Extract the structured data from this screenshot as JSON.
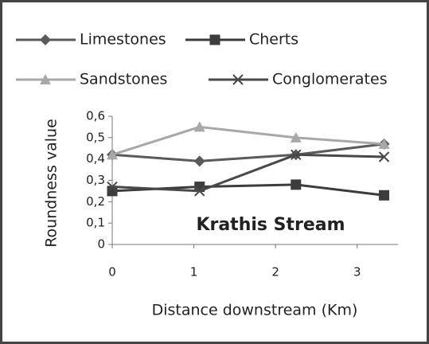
{
  "chart_data": {
    "type": "line",
    "annotation": "Krathis Stream",
    "x_label": "Distance downstream (Km)",
    "y_label": "Roundness value",
    "x": [
      0,
      1.07,
      2.25,
      3.33
    ],
    "series": [
      {
        "name": "Limestones",
        "color": "#5a5a5a",
        "marker": "diamond",
        "values": [
          0.42,
          0.39,
          0.42,
          0.47
        ]
      },
      {
        "name": "Cherts",
        "color": "#3c3c3c",
        "marker": "square",
        "values": [
          0.25,
          0.27,
          0.28,
          0.23
        ]
      },
      {
        "name": "Sandstones",
        "color": "#a8a8a8",
        "marker": "triangle",
        "values": [
          0.42,
          0.55,
          0.5,
          0.47
        ]
      },
      {
        "name": "Conglomerates",
        "color": "#484848",
        "marker": "x",
        "values": [
          0.27,
          0.25,
          0.42,
          0.41
        ]
      }
    ],
    "xlim": [
      0,
      3.5
    ],
    "xticks": [
      0,
      1,
      2,
      3
    ],
    "ylim": [
      0,
      0.6
    ],
    "yticks": [
      0,
      {
        "value": 0.1,
        "label": "0,1"
      },
      {
        "value": 0.2,
        "label": "0,2"
      },
      {
        "value": 0.3,
        "label": "0,3"
      },
      {
        "value": 0.4,
        "label": "0,4"
      },
      {
        "value": 0.5,
        "label": "0,5"
      },
      {
        "value": 0.6,
        "label": "0,6"
      }
    ],
    "grid": false
  }
}
